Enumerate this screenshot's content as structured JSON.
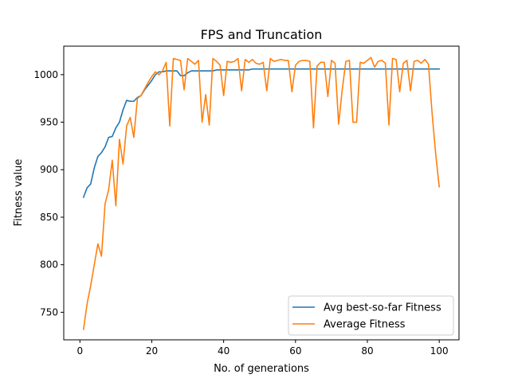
{
  "chart_data": {
    "type": "line",
    "title": "FPS and Truncation",
    "xlabel": "No. of generations",
    "ylabel": "Fitness value",
    "xlim": [
      -4.5,
      105.5
    ],
    "ylim": [
      721,
      1030
    ],
    "xticks": [
      0,
      20,
      40,
      60,
      80,
      100
    ],
    "yticks": [
      750,
      800,
      850,
      900,
      950,
      1000
    ],
    "grid": false,
    "legend_position": "lower-right",
    "series": [
      {
        "name": "Avg best-so-far Fitness",
        "color": "#1f77b4",
        "x": [
          1,
          2,
          3,
          4,
          5,
          6,
          7,
          8,
          9,
          10,
          11,
          12,
          13,
          14,
          15,
          16,
          17,
          18,
          19,
          20,
          21,
          22,
          23,
          24,
          25,
          26,
          27,
          28,
          29,
          30,
          31,
          32,
          33,
          34,
          35,
          36,
          37,
          38,
          39,
          40,
          41,
          42,
          43,
          44,
          45,
          46,
          47,
          48,
          49,
          50,
          51,
          52,
          53,
          54,
          55,
          56,
          57,
          58,
          59,
          60,
          61,
          62,
          63,
          64,
          65,
          66,
          67,
          68,
          69,
          70,
          71,
          72,
          73,
          74,
          75,
          76,
          77,
          78,
          79,
          80,
          81,
          82,
          83,
          84,
          85,
          86,
          87,
          88,
          89,
          90,
          91,
          92,
          93,
          94,
          95,
          96,
          97,
          98,
          99,
          100
        ],
        "y": [
          871,
          881,
          885,
          902,
          914,
          918,
          924,
          934,
          935,
          944,
          950,
          963,
          973,
          972,
          972,
          976,
          978,
          984,
          989,
          994,
          1000,
          1003,
          1003,
          1004,
          1004,
          1004,
          1004,
          999,
          999,
          1002,
          1004,
          1004,
          1004,
          1004,
          1004,
          1004,
          1004,
          1005,
          1005,
          1005,
          1005,
          1005,
          1005,
          1005,
          1005,
          1005,
          1005,
          1006,
          1006,
          1006,
          1006,
          1006,
          1006,
          1006,
          1006,
          1006,
          1006,
          1006,
          1006,
          1006,
          1006,
          1006,
          1006,
          1006,
          1006,
          1006,
          1006,
          1006,
          1006,
          1006,
          1006,
          1006,
          1006,
          1006,
          1006,
          1006,
          1006,
          1006,
          1006,
          1006,
          1006,
          1006,
          1006,
          1006,
          1006,
          1006,
          1006,
          1006,
          1006,
          1006,
          1006,
          1006,
          1006,
          1006,
          1006,
          1006,
          1006,
          1006,
          1006,
          1006
        ]
      },
      {
        "name": "Average Fitness",
        "color": "#ff7f0e",
        "x": [
          1,
          2,
          3,
          4,
          5,
          6,
          7,
          8,
          9,
          10,
          11,
          12,
          13,
          14,
          15,
          16,
          17,
          18,
          19,
          20,
          21,
          22,
          23,
          24,
          25,
          26,
          27,
          28,
          29,
          30,
          31,
          32,
          33,
          34,
          35,
          36,
          37,
          38,
          39,
          40,
          41,
          42,
          43,
          44,
          45,
          46,
          47,
          48,
          49,
          50,
          51,
          52,
          53,
          54,
          55,
          56,
          57,
          58,
          59,
          60,
          61,
          62,
          63,
          64,
          65,
          66,
          67,
          68,
          69,
          70,
          71,
          72,
          73,
          74,
          75,
          76,
          77,
          78,
          79,
          80,
          81,
          82,
          83,
          84,
          85,
          86,
          87,
          88,
          89,
          90,
          91,
          92,
          93,
          94,
          95,
          96,
          97,
          98,
          99,
          100
        ],
        "y": [
          732,
          759,
          778,
          800,
          822,
          809,
          864,
          879,
          910,
          862,
          932,
          906,
          946,
          955,
          934,
          975,
          978,
          985,
          992,
          998,
          1003,
          1000,
          1004,
          1013,
          946,
          1017,
          1016,
          1015,
          984,
          1017,
          1014,
          1011,
          1015,
          950,
          979,
          947,
          1017,
          1014,
          1010,
          978,
          1014,
          1013,
          1014,
          1017,
          983,
          1016,
          1013,
          1016,
          1012,
          1011,
          1013,
          983,
          1017,
          1014,
          1015,
          1016,
          1015,
          1015,
          982,
          1010,
          1014,
          1015,
          1015,
          1014,
          944,
          1009,
          1013,
          1013,
          977,
          1015,
          1012,
          948,
          984,
          1014,
          1015,
          950,
          950,
          1013,
          1012,
          1015,
          1018,
          1008,
          1014,
          1015,
          1012,
          947,
          1017,
          1016,
          982,
          1012,
          1015,
          983,
          1014,
          1015,
          1012,
          1016,
          1011,
          960,
          917,
          882
        ]
      }
    ]
  }
}
